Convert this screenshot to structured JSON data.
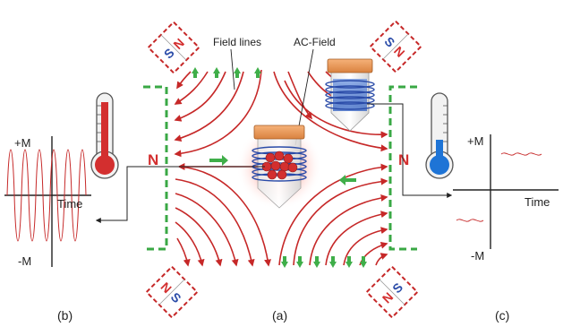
{
  "labels": {
    "field_lines": "Field lines",
    "ac_field": "AC-Field",
    "pole_left": "N",
    "pole_right": "N"
  },
  "magnets": {
    "north": "N",
    "south": "S"
  },
  "panel_b": {
    "plus_m": "+M",
    "minus_m": "-M",
    "time": "Time",
    "caption": "(b)"
  },
  "panel_a": {
    "caption": "(a)"
  },
  "panel_c": {
    "plus_m": "+M",
    "minus_m": "-M",
    "time": "Time",
    "caption": "(c)"
  },
  "colors": {
    "field_line": "#c62828",
    "magnet_outline": "#c62828",
    "pole_gap": "#3aa845",
    "arrow_green": "#3fae49",
    "north": "#d32f2f",
    "south": "#2a4ba8",
    "hot": "#e53935",
    "cold": "#1e74d6",
    "cap": "#f0a060"
  }
}
